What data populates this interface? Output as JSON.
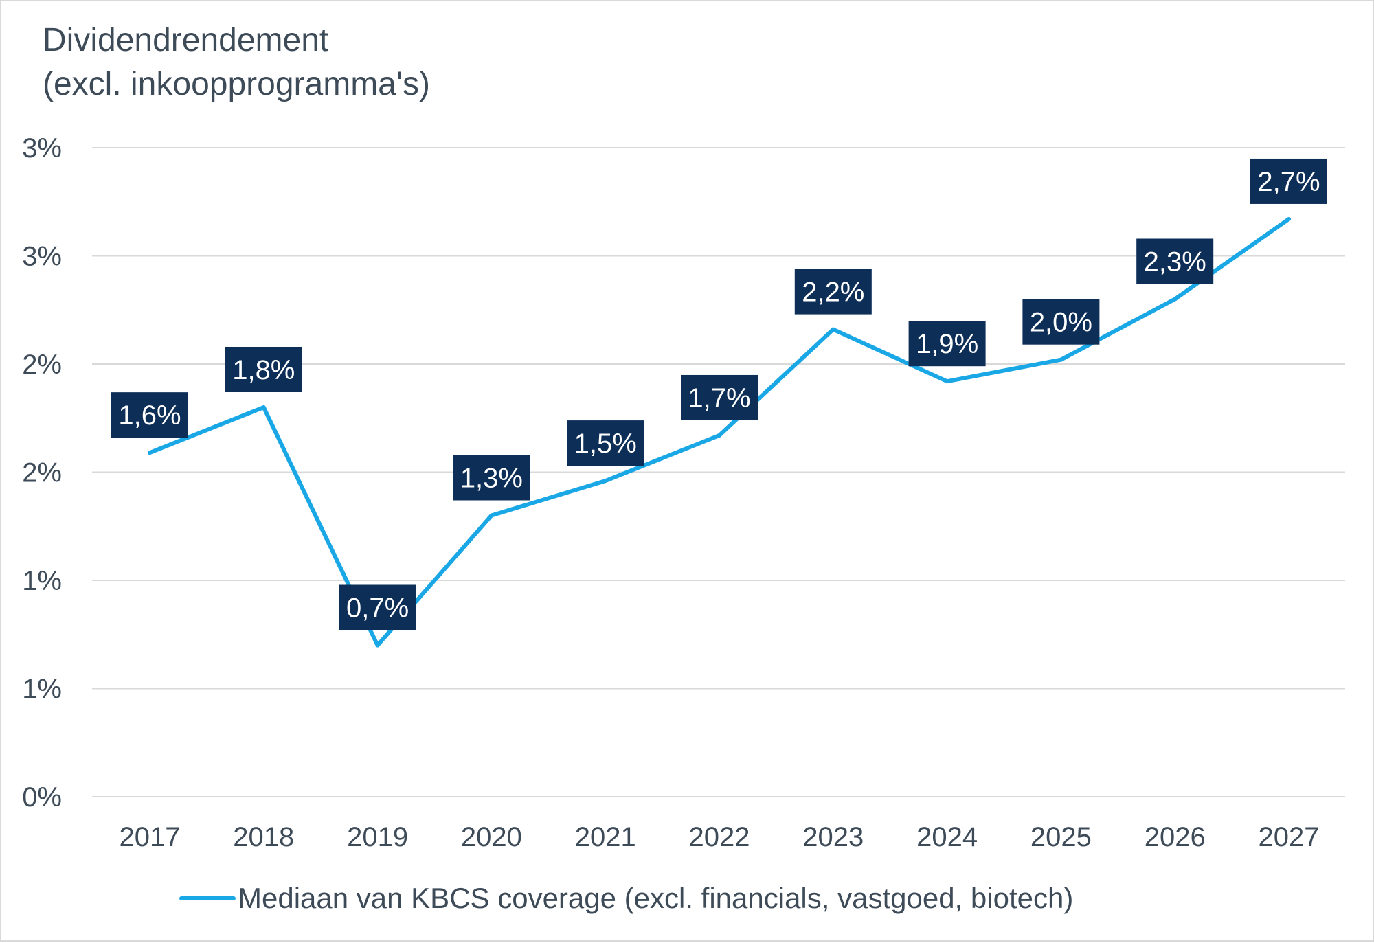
{
  "chart_data": {
    "type": "line",
    "title": "Dividendrendement",
    "subtitle": "(excl. inkoopprogramma's)",
    "categories": [
      "2017",
      "2018",
      "2019",
      "2020",
      "2021",
      "2022",
      "2023",
      "2024",
      "2025",
      "2026",
      "2027"
    ],
    "series": [
      {
        "name": "Mediaan van KBCS coverage (excl. financials, vastgoed, biotech)",
        "values": [
          1.59,
          1.8,
          0.7,
          1.3,
          1.46,
          1.67,
          2.16,
          1.92,
          2.02,
          2.3,
          2.67
        ],
        "labels": [
          "1,6%",
          "1,8%",
          "0,7%",
          "1,3%",
          "1,5%",
          "1,7%",
          "2,2%",
          "1,9%",
          "2,0%",
          "2,3%",
          "2,7%"
        ],
        "color": "#1aa7e6"
      }
    ],
    "ylim": [
      0,
      3.0
    ],
    "yticks": [
      0,
      0.5,
      1.0,
      1.5,
      2.0,
      2.5,
      3.0
    ],
    "ytick_labels": [
      "0%",
      "1%",
      "1%",
      "2%",
      "2%",
      "3%",
      "3%"
    ],
    "grid": true,
    "legend": "bottom",
    "label_box_color": "#0d2e57",
    "gridline_color": "#d9d9d9",
    "text_color": "#3d4a57"
  }
}
